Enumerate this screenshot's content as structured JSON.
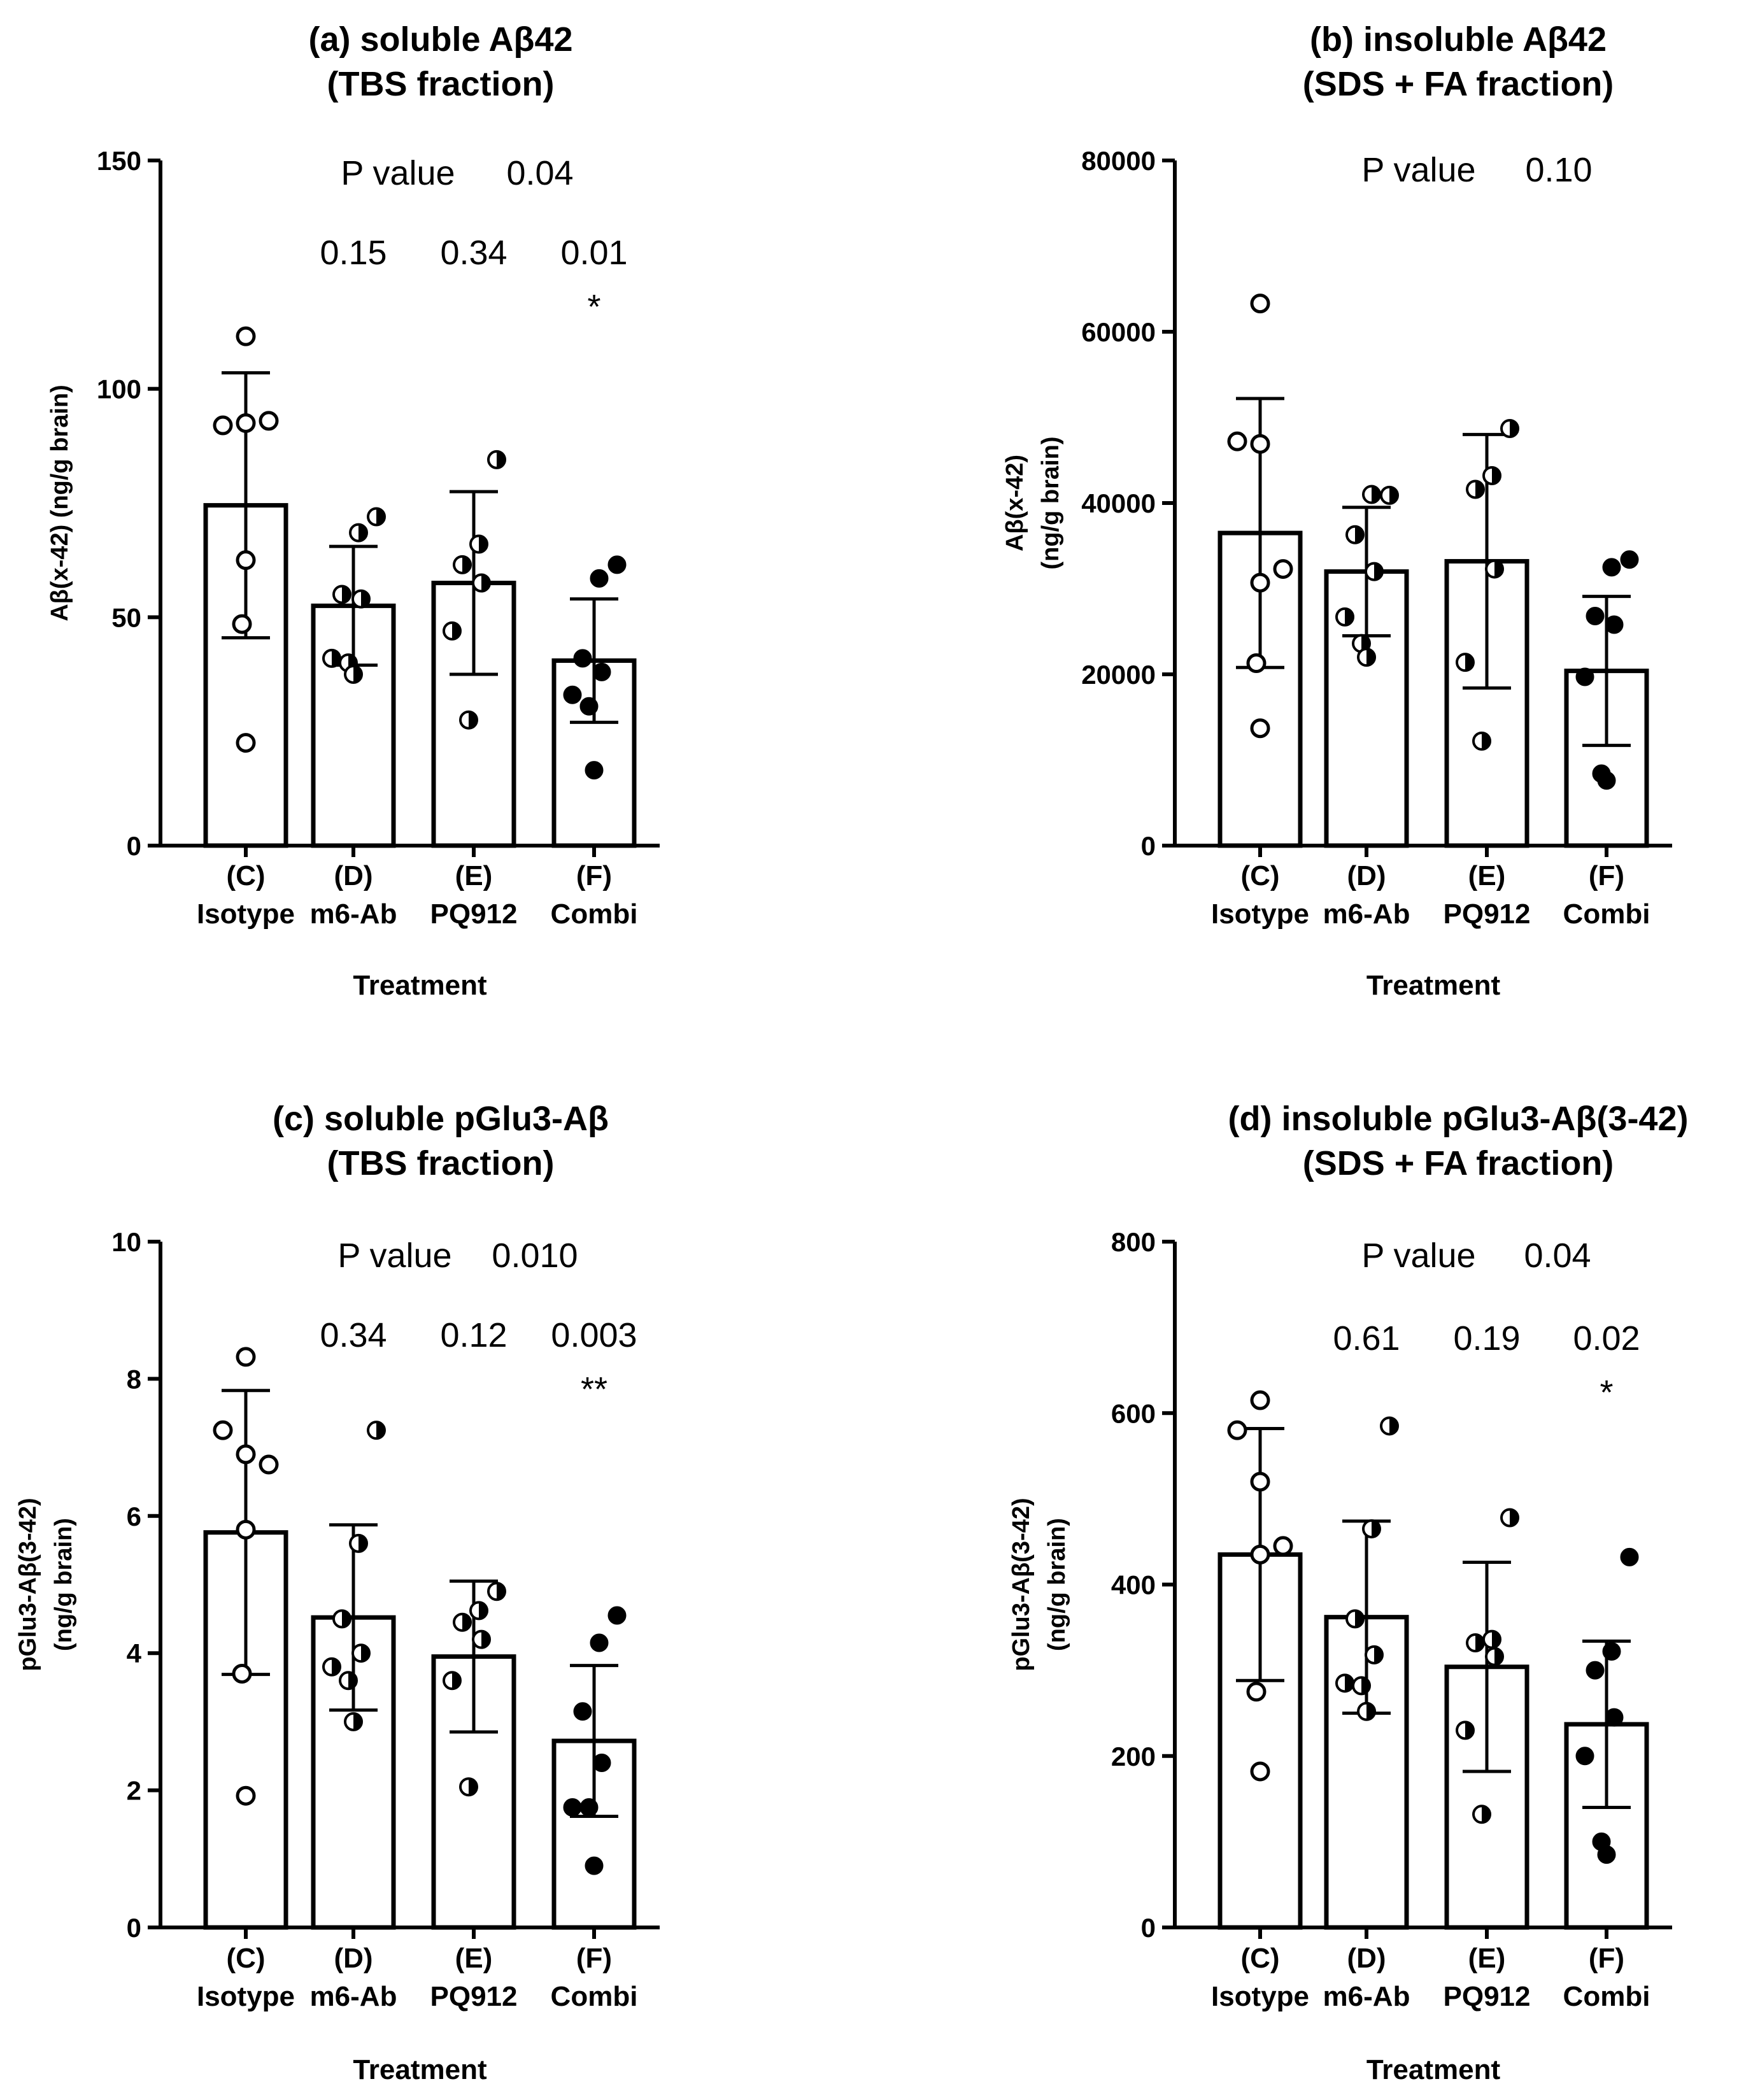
{
  "chart_data": [
    {
      "type": "bar",
      "panel": "a",
      "title_lines": [
        "(a) soluble Aβ42",
        "(TBS fraction)"
      ],
      "ylabel_lines": [
        "Aβ(x-42) (ng/g brain)"
      ],
      "xlabel": "Treatment",
      "categories": [
        {
          "code": "(C)",
          "name": "Isotype"
        },
        {
          "code": "(D)",
          "name": "m6-Ab"
        },
        {
          "code": "(E)",
          "name": "PQ912"
        },
        {
          "code": "(F)",
          "name": "Combi"
        }
      ],
      "ylim": [
        0,
        150
      ],
      "yticks": [
        0,
        50,
        100,
        150
      ],
      "ytick_labels": [
        "0",
        "50",
        "100",
        "150"
      ],
      "means": [
        74.5,
        52.5,
        57.5,
        40.5
      ],
      "errors": [
        29,
        13,
        20,
        13.5
      ],
      "points": [
        [
          111.5,
          92,
          92.5,
          93,
          62.5,
          48.5,
          22.5
        ],
        [
          72,
          68.5,
          55,
          54,
          41,
          40,
          37.5
        ],
        [
          84.5,
          66,
          61.5,
          57.5,
          47,
          27.5
        ],
        [
          61.5,
          58.5,
          41,
          38,
          33,
          30.5,
          16.5
        ]
      ],
      "pvalue_label": "P value",
      "pvalue": "0.04",
      "group_pvalues": [
        "",
        "0.15",
        "0.34",
        "0.01"
      ],
      "stars": [
        "",
        "",
        "",
        "*"
      ]
    },
    {
      "type": "bar",
      "panel": "b",
      "title_lines": [
        "(b) insoluble Aβ42",
        "(SDS + FA fraction)"
      ],
      "ylabel_lines": [
        "Aβ(x-42)",
        "(ng/g brain)"
      ],
      "xlabel": "Treatment",
      "categories": [
        {
          "code": "(C)",
          "name": "Isotype"
        },
        {
          "code": "(D)",
          "name": "m6-Ab"
        },
        {
          "code": "(E)",
          "name": "PQ912"
        },
        {
          "code": "(F)",
          "name": "Combi"
        }
      ],
      "ylim": [
        0,
        80000
      ],
      "yticks": [
        0,
        20000,
        40000,
        60000,
        80000
      ],
      "ytick_labels": [
        "0",
        "20000",
        "40000",
        "60000",
        "80000"
      ],
      "means": [
        36500,
        32000,
        33200,
        20400
      ],
      "errors": [
        15700,
        7500,
        14800,
        8700
      ],
      "points": [
        [
          63300,
          47200,
          46900,
          32300,
          30700,
          21300,
          13700
        ],
        [
          40900,
          41000,
          36300,
          32000,
          26700,
          23600,
          22000
        ],
        [
          48700,
          43200,
          41600,
          32300,
          21400,
          12200
        ],
        [
          33400,
          32500,
          26800,
          25800,
          19700,
          8400,
          7600
        ]
      ],
      "pvalue_label": "P value",
      "pvalue": "0.10",
      "group_pvalues": [
        "",
        "",
        "",
        ""
      ],
      "stars": [
        "",
        "",
        "",
        ""
      ]
    },
    {
      "type": "bar",
      "panel": "c",
      "title_lines": [
        "(c) soluble pGlu3-Aβ",
        "(TBS fraction)"
      ],
      "ylabel_lines": [
        "pGlu3-Aβ(3-42)",
        "(ng/g brain)"
      ],
      "xlabel": "Treatment",
      "categories": [
        {
          "code": "(C)",
          "name": "Isotype"
        },
        {
          "code": "(D)",
          "name": "m6-Ab"
        },
        {
          "code": "(E)",
          "name": "PQ912"
        },
        {
          "code": "(F)",
          "name": "Combi"
        }
      ],
      "ylim": [
        0,
        10
      ],
      "yticks": [
        0,
        2,
        4,
        6,
        8,
        10
      ],
      "ytick_labels": [
        "0",
        "2",
        "4",
        "6",
        "8",
        "10"
      ],
      "means": [
        5.76,
        4.52,
        3.95,
        2.72
      ],
      "errors": [
        2.07,
        1.35,
        1.1,
        1.1
      ],
      "points": [
        [
          8.32,
          7.25,
          6.9,
          6.75,
          5.8,
          3.7,
          1.92
        ],
        [
          7.25,
          5.6,
          4.5,
          4.0,
          3.8,
          3.6,
          3.0
        ],
        [
          4.9,
          4.62,
          4.45,
          4.2,
          3.6,
          2.05
        ],
        [
          4.55,
          4.15,
          3.15,
          2.4,
          1.75,
          1.75,
          0.9
        ]
      ],
      "pvalue_label": "P value",
      "pvalue": "0.010",
      "group_pvalues": [
        "",
        "0.34",
        "0.12",
        "0.003"
      ],
      "stars": [
        "",
        "",
        "",
        "**"
      ]
    },
    {
      "type": "bar",
      "panel": "d",
      "title_lines": [
        "(d) insoluble pGlu3-Aβ(3-42)",
        "(SDS + FA fraction)"
      ],
      "ylabel_lines": [
        "pGlu3-Aβ(3-42)",
        "(ng/g brain)"
      ],
      "xlabel": "Treatment",
      "categories": [
        {
          "code": "(C)",
          "name": "Isotype"
        },
        {
          "code": "(D)",
          "name": "m6-Ab"
        },
        {
          "code": "(E)",
          "name": "PQ912"
        },
        {
          "code": "(F)",
          "name": "Combi"
        }
      ],
      "ylim": [
        0,
        800
      ],
      "yticks": [
        0,
        200,
        400,
        600,
        800
      ],
      "ytick_labels": [
        "0",
        "200",
        "400",
        "600",
        "800"
      ],
      "means": [
        435,
        362,
        304,
        237
      ],
      "errors": [
        147,
        112,
        122,
        97
      ],
      "points": [
        [
          615,
          580,
          520,
          445,
          435,
          275,
          182
        ],
        [
          585,
          465,
          360,
          318,
          285,
          282,
          252
        ],
        [
          478,
          336,
          332,
          316,
          230,
          132
        ],
        [
          432,
          322,
          300,
          245,
          200,
          100,
          85
        ]
      ],
      "pvalue_label": "P value",
      "pvalue": "0.04",
      "group_pvalues": [
        "",
        "0.61",
        "0.19",
        "0.02"
      ],
      "stars": [
        "",
        "",
        "",
        "*"
      ]
    }
  ],
  "colors": {
    "ink": "#000000",
    "bar_fill": "#ffffff"
  },
  "marker_styles": [
    "open",
    "half",
    "half",
    "filled"
  ]
}
